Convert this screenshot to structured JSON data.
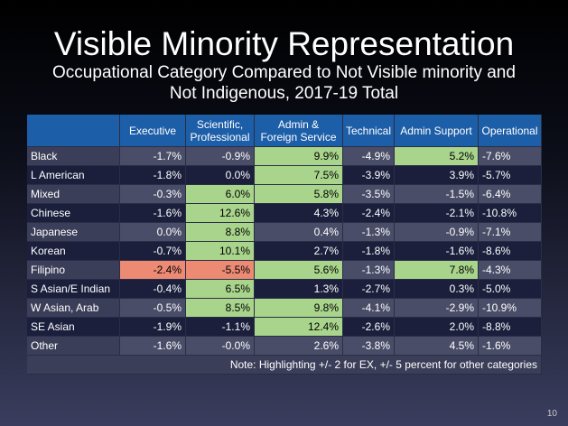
{
  "header": {
    "title": "Visible Minority Representation",
    "subtitle": [
      "Occupational Category Compared to Not Visible minority and",
      "Not Indigenous, 2017-19 Total"
    ]
  },
  "table": {
    "columns": [
      [
        "Executive"
      ],
      [
        "Scientific,",
        "Professional"
      ],
      [
        "Admin &",
        "Foreign Service"
      ],
      [
        "Technical"
      ],
      [
        "Admin Support"
      ],
      [
        "Operational"
      ]
    ],
    "rows": [
      {
        "label": "Black",
        "cells": [
          "-1.7%",
          "-0.9%",
          "9.9%",
          "-4.9%",
          "5.2%",
          "-7.6%"
        ],
        "highlight": [
          null,
          null,
          "#a9d48c",
          null,
          "#a9d48c",
          null
        ]
      },
      {
        "label": "L American",
        "cells": [
          "-1.8%",
          "0.0%",
          "7.5%",
          "-3.9%",
          "3.9%",
          "-5.7%"
        ],
        "highlight": [
          null,
          null,
          "#a9d48c",
          null,
          null,
          null
        ]
      },
      {
        "label": "Mixed",
        "cells": [
          "-0.3%",
          "6.0%",
          "5.8%",
          "-3.5%",
          "-1.5%",
          "-6.4%"
        ],
        "highlight": [
          null,
          "#a9d48c",
          "#a9d48c",
          null,
          null,
          null
        ]
      },
      {
        "label": "Chinese",
        "cells": [
          "-1.6%",
          "12.6%",
          "4.3%",
          "-2.4%",
          "-2.1%",
          "-10.8%"
        ],
        "highlight": [
          null,
          "#a9d48c",
          null,
          null,
          null,
          null
        ]
      },
      {
        "label": "Japanese",
        "cells": [
          "0.0%",
          "8.8%",
          "0.4%",
          "-1.3%",
          "-0.9%",
          "-7.1%"
        ],
        "highlight": [
          null,
          "#a9d48c",
          null,
          null,
          null,
          null
        ]
      },
      {
        "label": "Korean",
        "cells": [
          "-0.7%",
          "10.1%",
          "2.7%",
          "-1.8%",
          "-1.6%",
          "-8.6%"
        ],
        "highlight": [
          null,
          "#a9d48c",
          null,
          null,
          null,
          null
        ]
      },
      {
        "label": "Filipino",
        "cells": [
          "-2.4%",
          "-5.5%",
          "5.6%",
          "-1.3%",
          "7.8%",
          "-4.3%"
        ],
        "highlight": [
          "#ec8a74",
          "#ec8a74",
          "#a9d48c",
          null,
          "#a9d48c",
          null
        ]
      },
      {
        "label": "S Asian/E Indian",
        "cells": [
          "-0.4%",
          "6.5%",
          "1.3%",
          "-2.7%",
          "0.3%",
          "-5.0%"
        ],
        "highlight": [
          null,
          "#a9d48c",
          null,
          null,
          null,
          null
        ]
      },
      {
        "label": "W Asian, Arab",
        "cells": [
          "-0.5%",
          "8.5%",
          "9.8%",
          "-4.1%",
          "-2.9%",
          "-10.9%"
        ],
        "highlight": [
          null,
          "#a9d48c",
          "#a9d48c",
          null,
          null,
          null
        ]
      },
      {
        "label": "SE Asian",
        "cells": [
          "-1.9%",
          "-1.1%",
          "12.4%",
          "-2.6%",
          "2.0%",
          "-8.8%"
        ],
        "highlight": [
          null,
          null,
          "#a9d48c",
          null,
          null,
          null
        ]
      },
      {
        "label": "Other",
        "cells": [
          "-1.6%",
          "-0.0%",
          "2.6%",
          "-3.8%",
          "4.5%",
          "-1.6%"
        ],
        "highlight": [
          null,
          null,
          null,
          null,
          null,
          null
        ]
      }
    ],
    "note": "Note: Highlighting +/- 2 for EX, +/- 5 percent for other categories"
  },
  "page_number": "10"
}
